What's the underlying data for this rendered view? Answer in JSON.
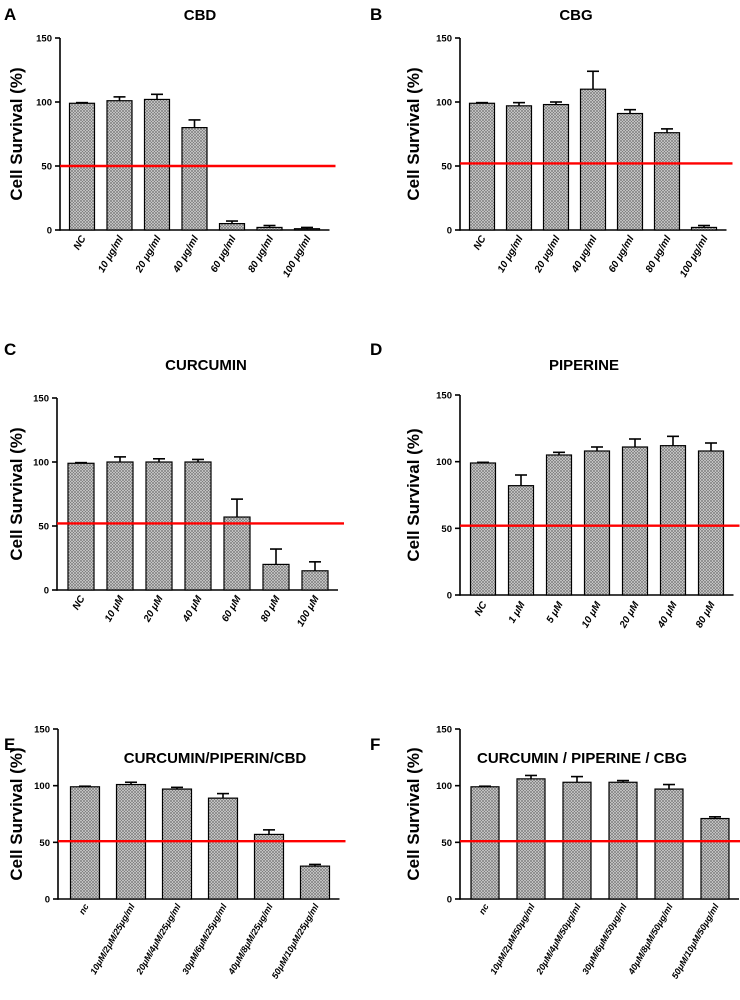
{
  "colors": {
    "reference_line": "#ff0000",
    "bar_outline": "#000000",
    "bar_hatch": "#9a9a9a"
  },
  "chart_data": [
    {
      "panel": "A",
      "title": "CBD",
      "type": "bar",
      "ylabel": "Cell Survival (%)",
      "ylim": [
        0,
        150
      ],
      "yticks": [
        0,
        50,
        100,
        150
      ],
      "categories": [
        "NC",
        "10 μg/ml",
        "20 μg/ml",
        "40 μg/ml",
        "60 μg/ml",
        "80 μg/ml",
        "100 μg/ml"
      ],
      "values": [
        99,
        101,
        102,
        80,
        5,
        2,
        1
      ],
      "errors": [
        0.5,
        3,
        4,
        6,
        2,
        1.5,
        1
      ],
      "reference_line": 50
    },
    {
      "panel": "B",
      "title": "CBG",
      "type": "bar",
      "ylabel": "Cell Survival (%)",
      "ylim": [
        0,
        150
      ],
      "yticks": [
        0,
        50,
        100,
        150
      ],
      "categories": [
        "NC",
        "10 μg/ml",
        "20 μg/ml",
        "40 μg/ml",
        "60 μg/ml",
        "80 μg/ml",
        "100 μg/ml"
      ],
      "values": [
        99,
        97,
        98,
        110,
        91,
        76,
        2
      ],
      "errors": [
        0.5,
        2.5,
        2,
        14,
        3,
        3,
        1.5
      ],
      "reference_line": 52
    },
    {
      "panel": "C",
      "title": "CURCUMIN",
      "type": "bar",
      "ylabel": "Cell Survival (%)",
      "ylim": [
        0,
        150
      ],
      "yticks": [
        0,
        50,
        100,
        150
      ],
      "categories": [
        "NC",
        "10 μM",
        "20 μM",
        "40 μM",
        "60 μM",
        "80 μM",
        "100 μM"
      ],
      "values": [
        99,
        100,
        100,
        100,
        57,
        20,
        15
      ],
      "errors": [
        0.5,
        4,
        2.5,
        2,
        14,
        12,
        7
      ],
      "reference_line": 52
    },
    {
      "panel": "D",
      "title": "PIPERINE",
      "type": "bar",
      "ylabel": "Cell Survival (%)",
      "ylim": [
        0,
        150
      ],
      "yticks": [
        0,
        50,
        100,
        150
      ],
      "categories": [
        "NC",
        "1 μM",
        "5 μM",
        "10 μM",
        "20 μM",
        "40 μM",
        "80 μM"
      ],
      "values": [
        99,
        82,
        105,
        108,
        111,
        112,
        108
      ],
      "errors": [
        0.5,
        8,
        2,
        3,
        6,
        7,
        6
      ],
      "reference_line": 52
    },
    {
      "panel": "E",
      "title": "CURCUMIN/PIPERIN/CBD",
      "type": "bar",
      "ylabel": "Cell Survival (%)",
      "ylim": [
        0,
        150
      ],
      "yticks": [
        0,
        50,
        100,
        150
      ],
      "categories": [
        "nc",
        "10μM/2μM/25μg/ml",
        "20μM/4μM/25μg/ml",
        "30μM/6μM/25μg/ml",
        "40μM/8μM/25μg/ml",
        "50μM/10μM/25μg/ml"
      ],
      "values": [
        99,
        101,
        97,
        89,
        57,
        29
      ],
      "errors": [
        0.5,
        2,
        1.5,
        4,
        4,
        1.5
      ],
      "reference_line": 51
    },
    {
      "panel": "F",
      "title": "CURCUMIN / PIPERINE / CBG",
      "type": "bar",
      "ylabel": "Cell Survival (%)",
      "ylim": [
        0,
        150
      ],
      "yticks": [
        0,
        50,
        100,
        150
      ],
      "categories": [
        "nc",
        "10μM/2μM/50μg/ml",
        "20μM/4μM/50μg/ml",
        "30μM/6μM/50μg/ml",
        "40μM/8μM/50μg/ml",
        "50μM/10μM/50μg/ml"
      ],
      "values": [
        99,
        106,
        103,
        103,
        97,
        71
      ],
      "errors": [
        0.5,
        3,
        5,
        1.5,
        4,
        1.5
      ],
      "reference_line": 51
    }
  ]
}
